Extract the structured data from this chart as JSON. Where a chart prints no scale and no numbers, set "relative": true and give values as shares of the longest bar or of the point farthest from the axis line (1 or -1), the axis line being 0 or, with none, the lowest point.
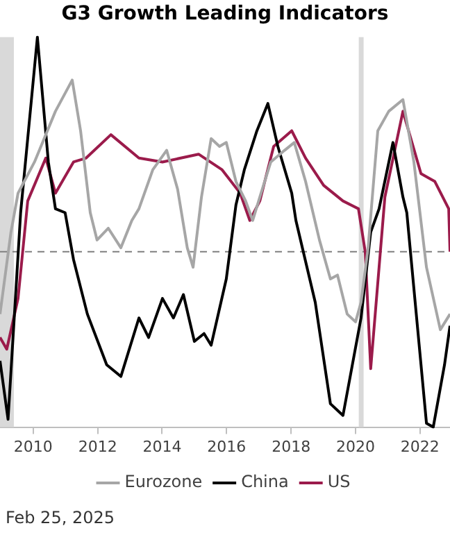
{
  "chart_data": {
    "type": "line",
    "title": "G3 Growth Leading Indicators",
    "relative": true,
    "legend": "bottom",
    "xlim": [
      2008.97,
      2022.93
    ],
    "xticks": [
      2010,
      2012,
      2014,
      2016,
      2018,
      2020,
      2022
    ],
    "series": [
      {
        "name": "Eurozone",
        "color": "#a6a6a6",
        "x": [
          2008.97,
          2009.31,
          2009.53,
          2010.04,
          2010.69,
          2011.21,
          2011.47,
          2011.77,
          2011.98,
          2012.33,
          2012.72,
          2013.06,
          2013.28,
          2013.71,
          2014.14,
          2014.48,
          2014.78,
          2014.96,
          2015.22,
          2015.52,
          2015.78,
          2015.99,
          2016.29,
          2016.59,
          2016.81,
          2017.03,
          2017.37,
          2017.8,
          2018.1,
          2018.45,
          2018.88,
          2019.22,
          2019.44,
          2019.74,
          2020.0,
          2020.17,
          2020.39,
          2020.69,
          2021.03,
          2021.47,
          2021.81,
          2022.2,
          2022.63,
          2022.93
        ],
        "values": [
          0.29,
          0.5,
          0.6,
          0.68,
          0.81,
          0.89,
          0.76,
          0.55,
          0.48,
          0.51,
          0.46,
          0.53,
          0.56,
          0.66,
          0.71,
          0.61,
          0.46,
          0.41,
          0.59,
          0.74,
          0.72,
          0.73,
          0.63,
          0.58,
          0.53,
          0.59,
          0.68,
          0.71,
          0.73,
          0.63,
          0.48,
          0.38,
          0.39,
          0.29,
          0.27,
          0.32,
          0.46,
          0.76,
          0.81,
          0.84,
          0.68,
          0.41,
          0.25,
          0.29
        ]
      },
      {
        "name": "China",
        "color": "#000000",
        "x": [
          2008.97,
          2009.22,
          2009.61,
          2010.13,
          2010.47,
          2010.69,
          2010.99,
          2011.25,
          2011.68,
          2012.28,
          2012.72,
          2013.28,
          2013.58,
          2014.01,
          2014.35,
          2014.66,
          2015.0,
          2015.3,
          2015.52,
          2015.99,
          2016.29,
          2016.55,
          2016.94,
          2017.28,
          2017.59,
          2018.02,
          2018.15,
          2018.75,
          2019.22,
          2019.61,
          2020.17,
          2020.47,
          2020.73,
          2021.16,
          2021.47,
          2021.59,
          2022.2,
          2022.41,
          2022.76,
          2022.93
        ],
        "values": [
          0.17,
          0.02,
          0.55,
          1,
          0.68,
          0.56,
          0.55,
          0.43,
          0.29,
          0.16,
          0.13,
          0.28,
          0.23,
          0.33,
          0.28,
          0.34,
          0.22,
          0.24,
          0.21,
          0.38,
          0.57,
          0.66,
          0.76,
          0.83,
          0.72,
          0.6,
          0.53,
          0.32,
          0.06,
          0.03,
          0.28,
          0.5,
          0.56,
          0.73,
          0.59,
          0.55,
          0.01,
          0,
          0.16,
          0.26
        ]
      },
      {
        "name": "US",
        "color": "#9b1b4b",
        "x": [
          2008.97,
          2009.18,
          2009.53,
          2009.83,
          2010.39,
          2010.69,
          2011.25,
          2011.64,
          2012.41,
          2013.28,
          2014.01,
          2015.13,
          2015.86,
          2016.42,
          2016.72,
          2017.03,
          2017.46,
          2018.02,
          2018.45,
          2019.01,
          2019.61,
          2020.09,
          2020.3,
          2020.47,
          2020.73,
          2020.91,
          2021.47,
          2022.03,
          2022.46,
          2022.89,
          2022.93
        ],
        "values": [
          0.23,
          0.2,
          0.33,
          0.58,
          0.69,
          0.6,
          0.68,
          0.69,
          0.75,
          0.69,
          0.68,
          0.7,
          0.66,
          0.6,
          0.53,
          0.58,
          0.72,
          0.76,
          0.69,
          0.62,
          0.58,
          0.56,
          0.45,
          0.15,
          0.41,
          0.59,
          0.81,
          0.65,
          0.63,
          0.56,
          0.45
        ]
      }
    ],
    "ref_lines": [
      {
        "axis": "y",
        "value": 0.45,
        "color": "#7f7f7f",
        "line_style": "dashed"
      }
    ],
    "bands": [
      {
        "axis": "x",
        "from": 2008.97,
        "to": 2009.4,
        "color": "#d9d9d9"
      },
      {
        "axis": "x",
        "from": 2020.1,
        "to": 2020.25,
        "color": "#d9d9d9"
      }
    ],
    "annotations": [
      "Feb 25, 2025"
    ]
  }
}
